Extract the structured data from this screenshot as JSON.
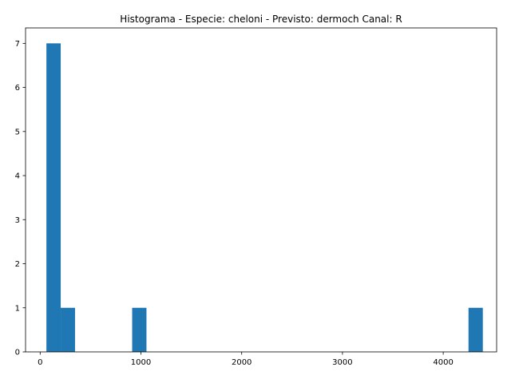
{
  "chart_data": {
    "type": "bar",
    "title": "Histograma - Especie: cheloni - Previsto: dermoch Canal: R",
    "xlabel": "",
    "ylabel": "",
    "bar_color": "#1f77b4",
    "xlim": [
      -145,
      4530
    ],
    "ylim": [
      0,
      7.35
    ],
    "xticks": [
      0,
      1000,
      2000,
      3000,
      4000
    ],
    "yticks": [
      0,
      1,
      2,
      3,
      4,
      5,
      6,
      7
    ],
    "bins": [
      {
        "x0": 62,
        "x1": 204,
        "count": 7
      },
      {
        "x0": 204,
        "x1": 346,
        "count": 1
      },
      {
        "x0": 913,
        "x1": 1055,
        "count": 1
      },
      {
        "x0": 4251,
        "x1": 4393,
        "count": 1
      }
    ],
    "grid": false,
    "legend": "none"
  }
}
